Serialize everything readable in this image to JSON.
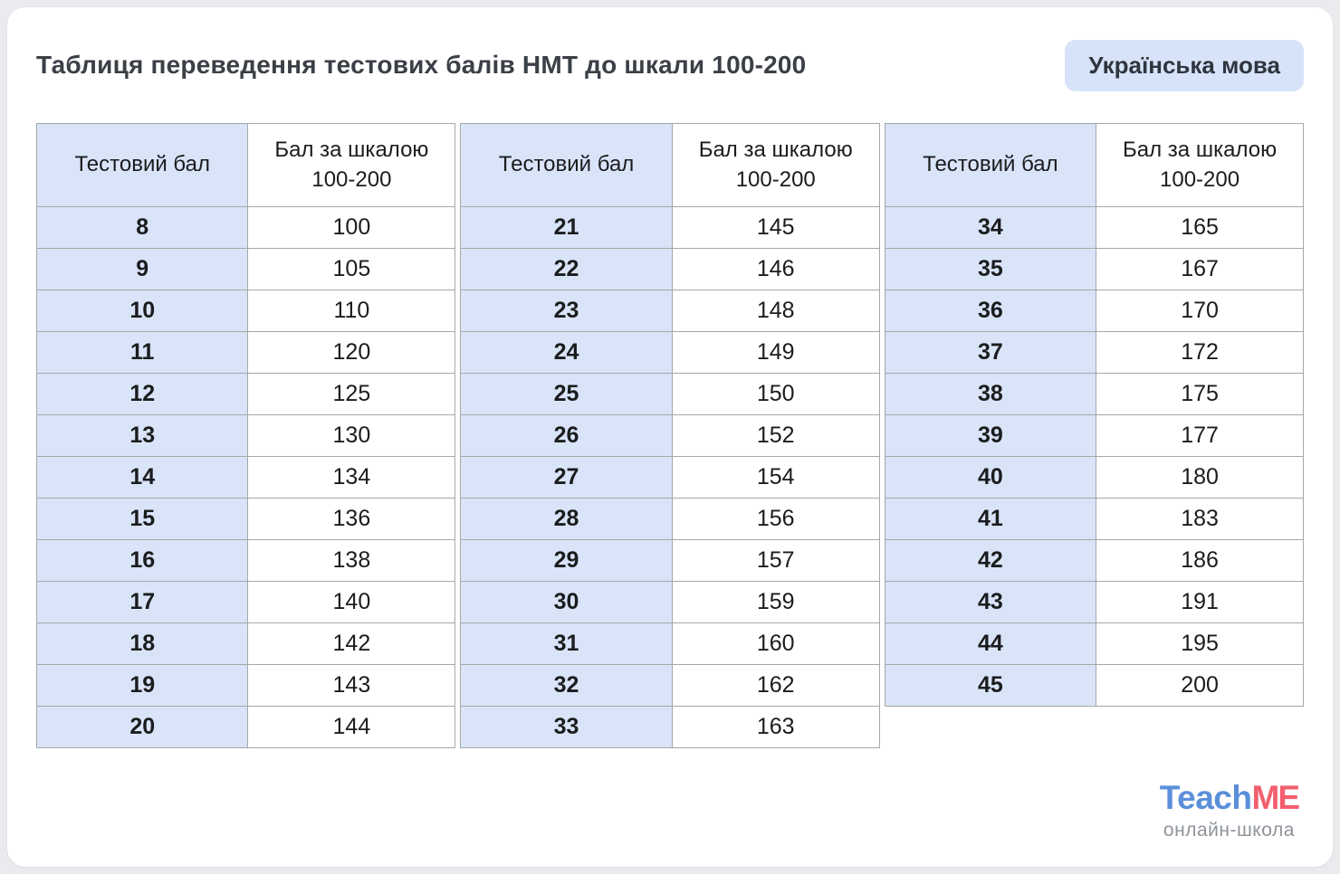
{
  "page": {
    "title": "Таблиця переведення тестових балів НМТ до шкали 100-200",
    "badge": "Українська мова"
  },
  "table": {
    "header_score": "Тестовий бал",
    "header_scale_line1": "Бал за шкалою",
    "header_scale_line2": "100-200"
  },
  "chart_data": {
    "type": "table",
    "title": "Таблиця переведення тестових балів НМТ до шкали 100-200",
    "subject": "Українська мова",
    "columns": [
      "Тестовий бал",
      "Бал за шкалою 100-200"
    ],
    "groups": [
      {
        "rows": [
          [
            8,
            100
          ],
          [
            9,
            105
          ],
          [
            10,
            110
          ],
          [
            11,
            120
          ],
          [
            12,
            125
          ],
          [
            13,
            130
          ],
          [
            14,
            134
          ],
          [
            15,
            136
          ],
          [
            16,
            138
          ],
          [
            17,
            140
          ],
          [
            18,
            142
          ],
          [
            19,
            143
          ],
          [
            20,
            144
          ]
        ]
      },
      {
        "rows": [
          [
            21,
            145
          ],
          [
            22,
            146
          ],
          [
            23,
            148
          ],
          [
            24,
            149
          ],
          [
            25,
            150
          ],
          [
            26,
            152
          ],
          [
            27,
            154
          ],
          [
            28,
            156
          ],
          [
            29,
            157
          ],
          [
            30,
            159
          ],
          [
            31,
            160
          ],
          [
            32,
            162
          ],
          [
            33,
            163
          ]
        ]
      },
      {
        "rows": [
          [
            34,
            165
          ],
          [
            35,
            167
          ],
          [
            36,
            170
          ],
          [
            37,
            172
          ],
          [
            38,
            175
          ],
          [
            39,
            177
          ],
          [
            40,
            180
          ],
          [
            41,
            183
          ],
          [
            42,
            186
          ],
          [
            43,
            191
          ],
          [
            44,
            195
          ],
          [
            45,
            200
          ]
        ]
      }
    ]
  },
  "logo": {
    "part1": "Teach",
    "part2": "ME",
    "subtitle": "онлайн-школа"
  },
  "colors": {
    "cell_blue": "#d9e4f8",
    "badge_blue": "#d7e3f8",
    "border_gray": "#a7a7a7",
    "logo_blue": "#5b8fd9",
    "logo_pink": "#f25f6e"
  }
}
